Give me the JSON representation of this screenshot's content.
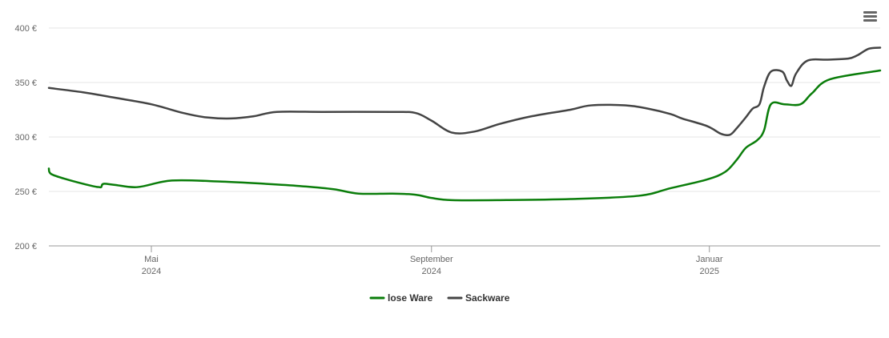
{
  "menu": {
    "icon": "hamburger-menu-icon"
  },
  "chart_data": {
    "type": "line",
    "title": "",
    "xlabel": "",
    "ylabel": "",
    "ylim": [
      200,
      400
    ],
    "yticks": [
      {
        "value": 200,
        "label": "200 €"
      },
      {
        "value": 250,
        "label": "250 €"
      },
      {
        "value": 300,
        "label": "300 €"
      },
      {
        "value": 350,
        "label": "350 €"
      },
      {
        "value": 400,
        "label": "400 €"
      }
    ],
    "xrange": [
      "2024-03-17",
      "2025-03-17"
    ],
    "xticks": [
      {
        "date": "2024-05-01",
        "label": "Mai",
        "sublabel": "2024"
      },
      {
        "date": "2024-09-01",
        "label": "September",
        "sublabel": "2024"
      },
      {
        "date": "2025-01-01",
        "label": "Januar",
        "sublabel": "2025"
      }
    ],
    "grid": true,
    "legend_position": "bottom-center",
    "series": [
      {
        "name": "lose Ware",
        "color": "#0a7d0a",
        "points": [
          [
            "2024-03-17",
            271
          ],
          [
            "2024-03-18",
            266
          ],
          [
            "2024-03-25",
            261
          ],
          [
            "2024-04-05",
            255
          ],
          [
            "2024-04-08",
            254
          ],
          [
            "2024-04-09",
            254
          ],
          [
            "2024-04-10",
            257
          ],
          [
            "2024-04-15",
            256
          ],
          [
            "2024-04-25",
            254
          ],
          [
            "2024-05-10",
            260
          ],
          [
            "2024-06-01",
            259
          ],
          [
            "2024-06-20",
            257
          ],
          [
            "2024-07-05",
            255
          ],
          [
            "2024-07-20",
            252
          ],
          [
            "2024-07-31",
            248
          ],
          [
            "2024-08-15",
            248
          ],
          [
            "2024-08-25",
            247
          ],
          [
            "2024-09-01",
            244
          ],
          [
            "2024-09-10",
            242
          ],
          [
            "2024-10-01",
            242
          ],
          [
            "2024-11-01",
            243
          ],
          [
            "2024-12-01",
            246
          ],
          [
            "2024-12-15",
            253
          ],
          [
            "2024-12-31",
            261
          ],
          [
            "2025-01-08",
            268
          ],
          [
            "2025-01-13",
            279
          ],
          [
            "2025-01-17",
            290
          ],
          [
            "2025-01-22",
            297
          ],
          [
            "2025-01-25",
            306
          ],
          [
            "2025-01-28",
            330
          ],
          [
            "2025-02-03",
            330
          ],
          [
            "2025-02-10",
            330
          ],
          [
            "2025-02-15",
            340
          ],
          [
            "2025-02-23",
            353
          ],
          [
            "2025-03-17",
            361
          ]
        ]
      },
      {
        "name": "Sackware",
        "color": "#444444",
        "points": [
          [
            "2024-03-17",
            345
          ],
          [
            "2024-04-01",
            341
          ],
          [
            "2024-04-15",
            336
          ],
          [
            "2024-05-01",
            330
          ],
          [
            "2024-05-15",
            322
          ],
          [
            "2024-05-25",
            318
          ],
          [
            "2024-06-05",
            317
          ],
          [
            "2024-06-15",
            319
          ],
          [
            "2024-06-25",
            323
          ],
          [
            "2024-07-15",
            323
          ],
          [
            "2024-08-15",
            323
          ],
          [
            "2024-08-25",
            322
          ],
          [
            "2024-09-01",
            315
          ],
          [
            "2024-09-10",
            304
          ],
          [
            "2024-09-20",
            305
          ],
          [
            "2024-10-01",
            312
          ],
          [
            "2024-10-15",
            319
          ],
          [
            "2024-11-01",
            325
          ],
          [
            "2024-11-10",
            329
          ],
          [
            "2024-11-25",
            329
          ],
          [
            "2024-12-05",
            326
          ],
          [
            "2024-12-15",
            321
          ],
          [
            "2024-12-20",
            317
          ],
          [
            "2024-12-31",
            310
          ],
          [
            "2025-01-06",
            303
          ],
          [
            "2025-01-10",
            302
          ],
          [
            "2025-01-13",
            308
          ],
          [
            "2025-01-17",
            318
          ],
          [
            "2025-01-20",
            326
          ],
          [
            "2025-01-23",
            330
          ],
          [
            "2025-01-25",
            346
          ],
          [
            "2025-01-28",
            360
          ],
          [
            "2025-02-02",
            360
          ],
          [
            "2025-02-04",
            352
          ],
          [
            "2025-02-06",
            347
          ],
          [
            "2025-02-08",
            358
          ],
          [
            "2025-02-13",
            370
          ],
          [
            "2025-02-22",
            371
          ],
          [
            "2025-03-03",
            372
          ],
          [
            "2025-03-07",
            375
          ],
          [
            "2025-03-12",
            381
          ],
          [
            "2025-03-17",
            382
          ]
        ]
      }
    ]
  }
}
